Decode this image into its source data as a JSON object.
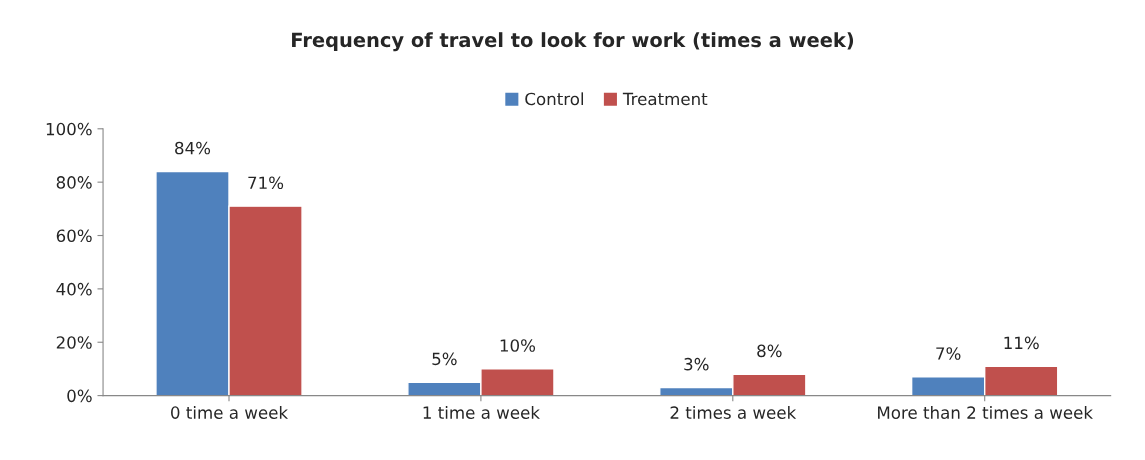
{
  "chart_data": {
    "type": "bar",
    "title": "Frequency of travel to look for work (times a week)",
    "categories": [
      "0 time a week",
      "1 time a week",
      "2 times a week",
      "More than 2 times a week"
    ],
    "series": [
      {
        "name": "Control",
        "color": "#4f81bd",
        "values": [
          84,
          5,
          3,
          7
        ],
        "value_labels": [
          "84%",
          "5%",
          "3%",
          "7%"
        ]
      },
      {
        "name": "Treatment",
        "color": "#c0504d",
        "values": [
          71,
          10,
          8,
          11
        ],
        "value_labels": [
          "71%",
          "10%",
          "8%",
          "11%"
        ]
      }
    ],
    "ylim": [
      0,
      100
    ],
    "yticks": [
      {
        "value": 0,
        "label": "0%"
      },
      {
        "value": 20,
        "label": "20%"
      },
      {
        "value": 40,
        "label": "40%"
      },
      {
        "value": 60,
        "label": "60%"
      },
      {
        "value": 80,
        "label": "80%"
      },
      {
        "value": 100,
        "label": "100%"
      }
    ],
    "legend": "top",
    "grid": false
  }
}
